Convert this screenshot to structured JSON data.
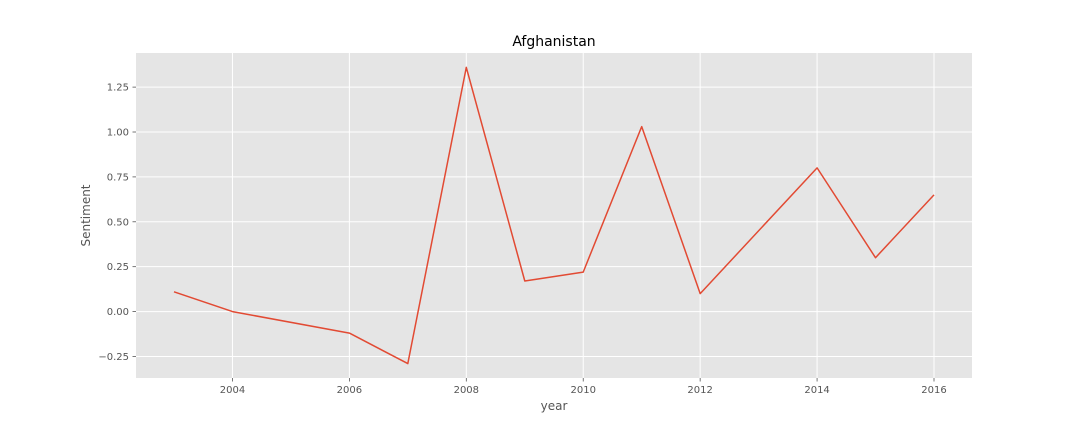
{
  "chart_data": {
    "type": "line",
    "title": "Afghanistan",
    "xlabel": "year",
    "ylabel": "Sentiment",
    "xlim": [
      2002.35,
      2016.65
    ],
    "ylim": [
      -0.37,
      1.44
    ],
    "grid": true,
    "legend": "none",
    "x_ticks": [
      2004,
      2006,
      2008,
      2010,
      2012,
      2014,
      2016
    ],
    "y_ticks": [
      -0.25,
      0.0,
      0.25,
      0.5,
      0.75,
      1.0,
      1.25
    ],
    "x_tick_labels": [
      "2004",
      "2006",
      "2008",
      "2010",
      "2012",
      "2014",
      "2016"
    ],
    "y_tick_labels": [
      "−0.25",
      "0.00",
      "0.25",
      "0.50",
      "0.75",
      "1.00",
      "1.25"
    ],
    "series": [
      {
        "x": [
          2003,
          2004,
          2006,
          2007,
          2008,
          2009,
          2010,
          2011,
          2012,
          2014,
          2015,
          2016
        ],
        "values": [
          0.11,
          0.0,
          -0.12,
          -0.29,
          1.36,
          0.17,
          0.22,
          1.03,
          0.1,
          0.8,
          0.3,
          0.65
        ],
        "color": "#E24A33"
      }
    ],
    "colors": {
      "plot_background": "#E5E5E5",
      "grid": "#FFFFFF",
      "tick": "#555555"
    }
  }
}
